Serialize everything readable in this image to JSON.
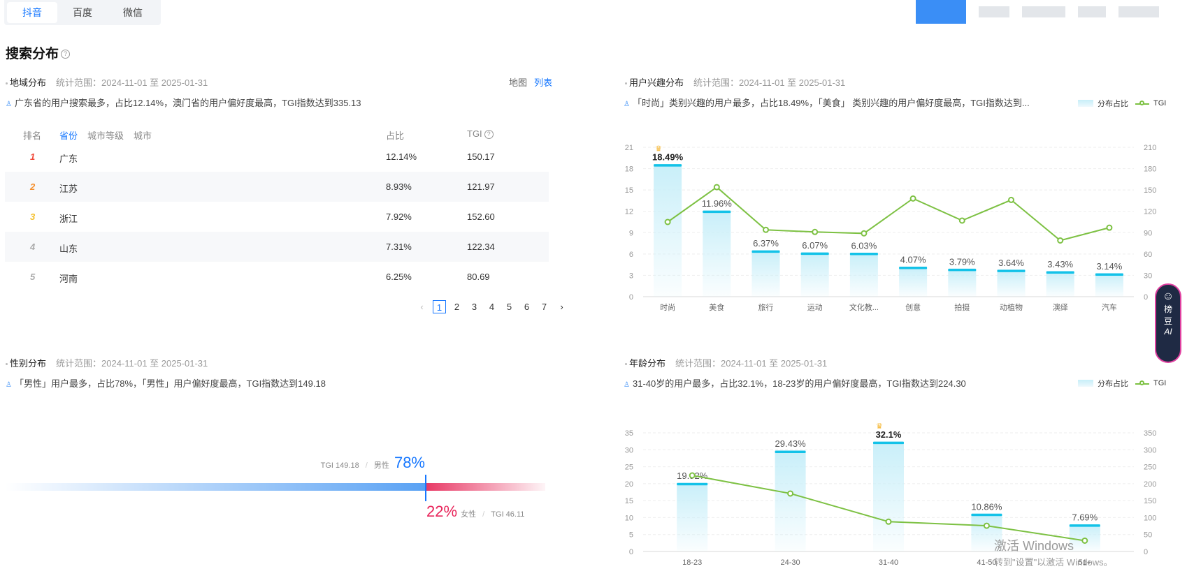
{
  "platform_tabs": [
    {
      "label": "抖音",
      "active": true
    },
    {
      "label": "百度",
      "active": false
    },
    {
      "label": "微信",
      "active": false
    }
  ],
  "section_title": "搜索分布",
  "region": {
    "title": "地域分布",
    "range": "统计范围：2024-11-01 至 2025-01-31",
    "view_map": "地图",
    "view_list": "列表",
    "summary": "广东省的用户搜索最多，占比12.14%，澳门省的用户偏好度最高，TGI指数达到335.13",
    "col_rank": "排名",
    "col_province": "省份",
    "col_city_level": "城市等级",
    "col_city": "城市",
    "col_share": "占比",
    "col_tgi": "TGI",
    "rows": [
      {
        "rank": "1",
        "name": "广东",
        "share": "12.14%",
        "tgi": "150.17"
      },
      {
        "rank": "2",
        "name": "江苏",
        "share": "8.93%",
        "tgi": "121.97"
      },
      {
        "rank": "3",
        "name": "浙江",
        "share": "7.92%",
        "tgi": "152.60"
      },
      {
        "rank": "4",
        "name": "山东",
        "share": "7.31%",
        "tgi": "122.34"
      },
      {
        "rank": "5",
        "name": "河南",
        "share": "6.25%",
        "tgi": "80.69"
      }
    ],
    "pages": [
      "1",
      "2",
      "3",
      "4",
      "5",
      "6",
      "7"
    ],
    "current_page": "1"
  },
  "interest": {
    "title": "用户兴趣分布",
    "range": "统计范围：2024-11-01 至 2025-01-31",
    "summary": "「时尚」类别兴趣的用户最多，占比18.49%，「美食」 类别兴趣的用户偏好度最高，TGI指数达到...",
    "legend_bar": "分布占比",
    "legend_line": "TGI"
  },
  "gender": {
    "title": "性别分布",
    "range": "统计范围：2024-11-01 至 2025-01-31",
    "summary": "「男性」用户最多，占比78%，「男性」用户偏好度最高，TGI指数达到149.18",
    "male_tgi": "TGI 149.18",
    "male_label": "男性",
    "male_pct": "78%",
    "female_pct": "22%",
    "female_label": "女性",
    "female_tgi": "TGI 46.11",
    "male_share": 0.78
  },
  "age": {
    "title": "年龄分布",
    "range": "统计范围：2024-11-01 至 2025-01-31",
    "summary": "31-40岁的用户最多，占比32.1%，18-23岁的用户偏好度最高，TGI指数达到224.30",
    "legend_bar": "分布占比",
    "legend_line": "TGI"
  },
  "ai_widget": {
    "line1": "榜",
    "line2": "豆",
    "line3": "AI"
  },
  "windows_notice": {
    "line1": "激活 Windows",
    "line2": "转到\"设置\"以激活 Windows。"
  },
  "chart_data": [
    {
      "type": "bar",
      "title": "用户兴趣分布",
      "categories": [
        "时尚",
        "美食",
        "旅行",
        "运动",
        "文化教...",
        "创意",
        "拍摄",
        "动植物",
        "演绎",
        "汽车"
      ],
      "series": [
        {
          "name": "分布占比",
          "values": [
            18.49,
            11.96,
            6.37,
            6.07,
            6.03,
            4.07,
            3.79,
            3.64,
            3.43,
            3.14
          ],
          "labels": [
            "18.49%",
            "11.96%",
            "6.37%",
            "6.07%",
            "6.03%",
            "4.07%",
            "3.79%",
            "3.64%",
            "3.43%",
            "3.14%"
          ]
        },
        {
          "name": "TGI",
          "type": "line",
          "values": [
            105,
            154,
            94,
            91,
            89,
            138,
            107,
            136,
            79,
            97
          ]
        }
      ],
      "ylim": [
        0,
        21
      ],
      "yticks": [
        "0",
        "3",
        "6",
        "9",
        "12",
        "15",
        "18",
        "21"
      ],
      "y2lim": [
        0,
        210
      ],
      "y2ticks": [
        "0",
        "30",
        "60",
        "90",
        "120",
        "150",
        "180",
        "210"
      ],
      "grid": true,
      "legend": "top-right"
    },
    {
      "type": "bar",
      "title": "年龄分布",
      "categories": [
        "18-23",
        "24-30",
        "31-40",
        "41-50",
        "51+"
      ],
      "series": [
        {
          "name": "分布占比",
          "values": [
            19.92,
            29.43,
            32.1,
            10.86,
            7.69
          ],
          "labels": [
            "19.92%",
            "29.43%",
            "32.1%",
            "10.86%",
            "7.69%"
          ]
        },
        {
          "name": "TGI",
          "type": "line",
          "values": [
            224.3,
            171,
            88,
            76,
            32
          ]
        }
      ],
      "ylim": [
        0,
        35
      ],
      "yticks": [
        "0",
        "5",
        "10",
        "15",
        "20",
        "25",
        "30",
        "35"
      ],
      "y2lim": [
        0,
        350
      ],
      "y2ticks": [
        "0",
        "50",
        "100",
        "150",
        "200",
        "250",
        "300",
        "350"
      ],
      "grid": true,
      "legend": "top-right"
    }
  ]
}
